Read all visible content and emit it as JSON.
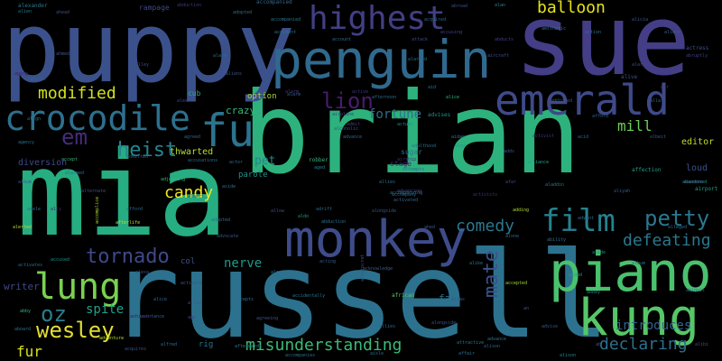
{
  "words": [
    {
      "text": "mia",
      "color": "#26ad81"
    },
    {
      "text": "brian",
      "color": "#2db27d"
    },
    {
      "text": "russell",
      "color": "#2c728e"
    },
    {
      "text": "puppy",
      "color": "#3b518b"
    },
    {
      "text": "sue",
      "color": "#433e85"
    },
    {
      "text": "penguin",
      "color": "#30698e"
    },
    {
      "text": "emerald",
      "color": "#3e4a89"
    },
    {
      "text": "piano",
      "color": "#4ac16d"
    },
    {
      "text": "kung",
      "color": "#56c667"
    },
    {
      "text": "monkey",
      "color": "#3e4c8a"
    },
    {
      "text": "crocodile",
      "color": "#2d708e"
    },
    {
      "text": "fu",
      "color": "#2c738e"
    },
    {
      "text": "highest",
      "color": "#423f85"
    },
    {
      "text": "film",
      "color": "#26818e"
    },
    {
      "text": "lung",
      "color": "#7ad151"
    },
    {
      "text": "petty",
      "color": "#2a778e"
    },
    {
      "text": "tornado",
      "color": "#3e4989"
    },
    {
      "text": "comedy",
      "color": "#2a788e"
    },
    {
      "text": "misunderstanding",
      "color": "#3aba76"
    },
    {
      "text": "wesley",
      "color": "#e1dd37"
    },
    {
      "text": "oz",
      "color": "#277f8e"
    },
    {
      "text": "balloon",
      "color": "#e7e419"
    },
    {
      "text": "lion",
      "color": "#481c6e"
    },
    {
      "text": "modified",
      "color": "#d2e21b"
    },
    {
      "text": "heist",
      "color": "#25858e"
    },
    {
      "text": "em",
      "color": "#472c7a"
    },
    {
      "text": "declaring",
      "color": "#2d708e"
    },
    {
      "text": "defeating",
      "color": "#2a788e"
    },
    {
      "text": "candy",
      "color": "#f1e51d"
    },
    {
      "text": "mate",
      "color": "#3b528b"
    },
    {
      "text": "mill",
      "color": "#6ece58"
    },
    {
      "text": "introduces",
      "color": "#33638d"
    },
    {
      "text": "fortune",
      "color": "#2d708e"
    },
    {
      "text": "spite",
      "color": "#1fa187"
    },
    {
      "text": "fur",
      "color": "#d8e219"
    },
    {
      "text": "crazy",
      "color": "#35b779"
    },
    {
      "text": "nerve",
      "color": "#1f988b"
    },
    {
      "text": "pet",
      "color": "#25858e"
    },
    {
      "text": "editor",
      "color": "#bddf26"
    },
    {
      "text": "thwarted",
      "color": "#b5de2b"
    },
    {
      "text": "writer",
      "color": "#3f4889"
    },
    {
      "text": "fat",
      "color": "#2c728e"
    },
    {
      "text": "loud",
      "color": "#3b528b"
    },
    {
      "text": "option",
      "color": "#a2da37"
    },
    {
      "text": "parole",
      "color": "#21918c"
    },
    {
      "text": "cub",
      "color": "#29af7f"
    },
    {
      "text": "col",
      "color": "#3b528b"
    },
    {
      "text": "rampage",
      "color": "#3f4788"
    },
    {
      "text": "stage",
      "color": "#482878"
    },
    {
      "text": "alexander",
      "color": "#2a788e"
    },
    {
      "text": "alien",
      "color": "#2a768e"
    },
    {
      "text": "ahead",
      "color": "#3e4c8a"
    },
    {
      "text": "accompanied",
      "color": "#31688e"
    },
    {
      "text": "adopted",
      "color": "#2e6e8e"
    },
    {
      "text": "abduction",
      "color": "#46337e"
    },
    {
      "text": "alan",
      "color": "#26828e"
    },
    {
      "text": "abroad",
      "color": "#3b528b"
    },
    {
      "text": "abducts",
      "color": "#443a83"
    },
    {
      "text": "accusing",
      "color": "#404688"
    },
    {
      "text": "account",
      "color": "#2f6c8e"
    },
    {
      "text": "action",
      "color": "#2e6f8e"
    },
    {
      "text": "actress",
      "color": "#3a548c"
    },
    {
      "text": "abruptly",
      "color": "#433d84"
    },
    {
      "text": "aliens",
      "color": "#34608d"
    },
    {
      "text": "alive",
      "color": "#3b528b"
    },
    {
      "text": "air",
      "color": "#433e85"
    },
    {
      "text": "adventure",
      "color": "#b8de29"
    },
    {
      "text": "airport",
      "color": "#1fa088"
    },
    {
      "text": "affection",
      "color": "#1f9f88"
    },
    {
      "text": "ability",
      "color": "#2c738e"
    },
    {
      "text": "afford",
      "color": "#34618d"
    },
    {
      "text": "alarm",
      "color": "#453581"
    },
    {
      "text": "active",
      "color": "#46327e"
    },
    {
      "text": "alice",
      "color": "#35b779"
    },
    {
      "text": "advises",
      "color": "#1f958b"
    },
    {
      "text": "accused",
      "color": "#1f958b"
    },
    {
      "text": "activates",
      "color": "#2e6d8e"
    },
    {
      "text": "activate",
      "color": "#39568c"
    },
    {
      "text": "adding",
      "color": "#b2dd2d"
    },
    {
      "text": "alerted",
      "color": "#b5de2b"
    },
    {
      "text": "african",
      "color": "#5ec962"
    },
    {
      "text": "accepted",
      "color": "#a2da37"
    },
    {
      "text": "alison",
      "color": "#32658e"
    },
    {
      "text": "abbey",
      "color": "#26828e"
    },
    {
      "text": "abby",
      "color": "#31b57b"
    },
    {
      "text": "aboard",
      "color": "#2d718e"
    },
    {
      "text": "alfred",
      "color": "#2c738e"
    },
    {
      "text": "advance",
      "color": "#2b758e"
    },
    {
      "text": "aided",
      "color": "#1f988b"
    },
    {
      "text": "accidentally",
      "color": "#2c738e"
    },
    {
      "text": "acquaintance",
      "color": "#34608d"
    },
    {
      "text": "ally",
      "color": "#482576"
    },
    {
      "text": "accompany",
      "color": "#31688e"
    },
    {
      "text": "acting",
      "color": "#375b8d"
    },
    {
      "text": "agreeing",
      "color": "#3b528b"
    },
    {
      "text": "activist",
      "color": "#46327e"
    },
    {
      "text": "activists",
      "color": "#472c7a"
    },
    {
      "text": "attack",
      "color": "#3e4a89"
    },
    {
      "text": "aside",
      "color": "#26828e"
    },
    {
      "text": "alliance",
      "color": "#1fa188"
    },
    {
      "text": "aldo",
      "color": "#1f9e89"
    },
    {
      "text": "agency",
      "color": "#2d708e"
    },
    {
      "text": "accept",
      "color": "#35b779"
    },
    {
      "text": "admit",
      "color": "#433e85"
    },
    {
      "text": "airplane",
      "color": "#433e85"
    },
    {
      "text": "alcoholic",
      "color": "#3b528b"
    },
    {
      "text": "afternoon",
      "color": "#2e6e8e"
    },
    {
      "text": "adulthood",
      "color": "#2c738e"
    },
    {
      "text": "aladdin",
      "color": "#2a788e"
    },
    {
      "text": "actual",
      "color": "#228c8d"
    },
    {
      "text": "alarm",
      "color": "#34618d"
    },
    {
      "text": "adds",
      "color": "#39568c"
    },
    {
      "text": "agreed",
      "color": "#31688e"
    },
    {
      "text": "alex",
      "color": "#1f958b"
    },
    {
      "text": "aged",
      "color": "#26828e"
    },
    {
      "text": "diversion",
      "color": "#3e4a89"
    },
    {
      "text": "afterlife",
      "color": "#c0df25"
    },
    {
      "text": "alarmed",
      "color": "#2d708e"
    },
    {
      "text": "accomplice",
      "color": "#a5db36"
    },
    {
      "text": "albert",
      "color": "#3e4c8a"
    },
    {
      "text": "achieve",
      "color": "#481668"
    },
    {
      "text": "afterwards",
      "color": "#2a778e"
    },
    {
      "text": "accompanies",
      "color": "#2e6f8e"
    },
    {
      "text": "acquires",
      "color": "#3b528b"
    },
    {
      "text": "attractive",
      "color": "#2c738e"
    },
    {
      "text": "airship",
      "color": "#472d7b"
    },
    {
      "text": "attempts",
      "color": "#2d708e"
    },
    {
      "text": "alongside",
      "color": "#3a548c"
    },
    {
      "text": "affair",
      "color": "#2c738e"
    },
    {
      "text": "alison",
      "color": "#238a8d"
    },
    {
      "text": "abandon",
      "color": "#46327e"
    },
    {
      "text": "age",
      "color": "#3e4c8a"
    },
    {
      "text": "aside",
      "color": "#2d718e"
    },
    {
      "text": "advance",
      "color": "#31688e"
    },
    {
      "text": "accusations",
      "color": "#2d708e"
    },
    {
      "text": "adjusting",
      "color": "#35b779"
    },
    {
      "text": "admitted",
      "color": "#3a548c"
    },
    {
      "text": "actor",
      "color": "#31688e"
    },
    {
      "text": "acknowledge",
      "color": "#38588c"
    },
    {
      "text": "adopted",
      "color": "#2e6e8e"
    },
    {
      "text": "alarm",
      "color": "#31688e"
    },
    {
      "text": "aliens",
      "color": "#3b528b"
    },
    {
      "text": "alex",
      "color": "#404688"
    },
    {
      "text": "accident",
      "color": "#2a778e"
    },
    {
      "text": "aid",
      "color": "#2c738e"
    },
    {
      "text": "aging",
      "color": "#481c6e"
    },
    {
      "text": "alley",
      "color": "#375b8d"
    },
    {
      "text": "allow",
      "color": "#3b528b"
    },
    {
      "text": "ahmed",
      "color": "#39568c"
    },
    {
      "text": "albino",
      "color": "#31688e"
    },
    {
      "text": "abigail",
      "color": "#38588c"
    },
    {
      "text": "alarmed",
      "color": "#2f6c8e"
    },
    {
      "text": "abandoned",
      "color": "#1f948c"
    },
    {
      "text": "aristocrat",
      "color": "#3e4c8a"
    },
    {
      "text": "accompanying",
      "color": "#2c738e"
    },
    {
      "text": "advancing",
      "color": "#3f4889"
    },
    {
      "text": "activated",
      "color": "#32658e"
    },
    {
      "text": "abduction",
      "color": "#2c738e"
    },
    {
      "text": "alongside",
      "color": "#3b528b"
    },
    {
      "text": "rig",
      "color": "#2d708e"
    },
    {
      "text": "sugar",
      "color": "#2b758e"
    },
    {
      "text": "robber",
      "color": "#35b779"
    },
    {
      "text": "accompanied",
      "color": "#2c738e"
    },
    {
      "text": "aircraft",
      "color": "#3b528b"
    },
    {
      "text": "aesthetic",
      "color": "#2d708e"
    },
    {
      "text": "alarmed",
      "color": "#3e4a89"
    },
    {
      "text": "addicted",
      "color": "#39568c"
    },
    {
      "text": "acid",
      "color": "#31688e"
    },
    {
      "text": "alla",
      "color": "#31688e"
    },
    {
      "text": "aidan",
      "color": "#2b758e"
    },
    {
      "text": "ahed",
      "color": "#38588c"
    },
    {
      "text": "alone",
      "color": "#2f6c8e"
    },
    {
      "text": "an",
      "color": "#3b528b"
    },
    {
      "text": "ab",
      "color": "#38588c"
    },
    {
      "text": "abigail",
      "color": "#2d708e"
    },
    {
      "text": "afford",
      "color": "#2c738e"
    },
    {
      "text": "alternate",
      "color": "#3b528b"
    },
    {
      "text": "album",
      "color": "#375b8d"
    },
    {
      "text": "alexa",
      "color": "#404688"
    },
    {
      "text": "accepts",
      "color": "#2f6c8e"
    },
    {
      "text": "alert",
      "color": "#2c738e"
    },
    {
      "text": "allies",
      "color": "#31688e"
    },
    {
      "text": "advise",
      "color": "#38588c"
    },
    {
      "text": "album",
      "color": "#2d708e"
    },
    {
      "text": "alibi",
      "color": "#3b528b"
    },
    {
      "text": "align",
      "color": "#2c738e"
    },
    {
      "text": "acquired",
      "color": "#31688e"
    },
    {
      "text": "alley",
      "color": "#3e4a89"
    },
    {
      "text": "alicia",
      "color": "#38588c"
    },
    {
      "text": "alleged",
      "color": "#2f6c8e"
    },
    {
      "text": "alike",
      "color": "#2c738e"
    },
    {
      "text": "alice",
      "color": "#31688e"
    },
    {
      "text": "advocate",
      "color": "#38588c"
    },
    {
      "text": "adele",
      "color": "#2d708e"
    },
    {
      "text": "alias",
      "color": "#3b528b"
    },
    {
      "text": "afar",
      "color": "#3e4a89"
    },
    {
      "text": "aliyah",
      "color": "#38588c"
    },
    {
      "text": "adrift",
      "color": "#2f6c8e"
    },
    {
      "text": "allies",
      "color": "#2c738e"
    },
    {
      "text": "advent",
      "color": "#31688e"
    },
    {
      "text": "albeit",
      "color": "#38588c"
    },
    {
      "text": "aisle",
      "color": "#2d708e"
    },
    {
      "text": "aliens",
      "color": "#3b528b"
    },
    {
      "text": "allied",
      "color": "#3e4a89"
    },
    {
      "text": "alps",
      "color": "#38588c"
    },
    {
      "text": "alright",
      "color": "#2f6c8e"
    },
    {
      "text": "alto",
      "color": "#2c738e"
    },
    {
      "text": "allure",
      "color": "#31688e"
    },
    {
      "text": "alpha",
      "color": "#38588c"
    },
    {
      "text": "aloof",
      "color": "#2d708e"
    },
    {
      "text": "alarm",
      "color": "#3b528b"
    },
    {
      "text": "alaska",
      "color": "#3e4a89"
    },
    {
      "text": "akin",
      "color": "#38588c"
    },
    {
      "text": "allie",
      "color": "#2f6c8e"
    }
  ]
}
